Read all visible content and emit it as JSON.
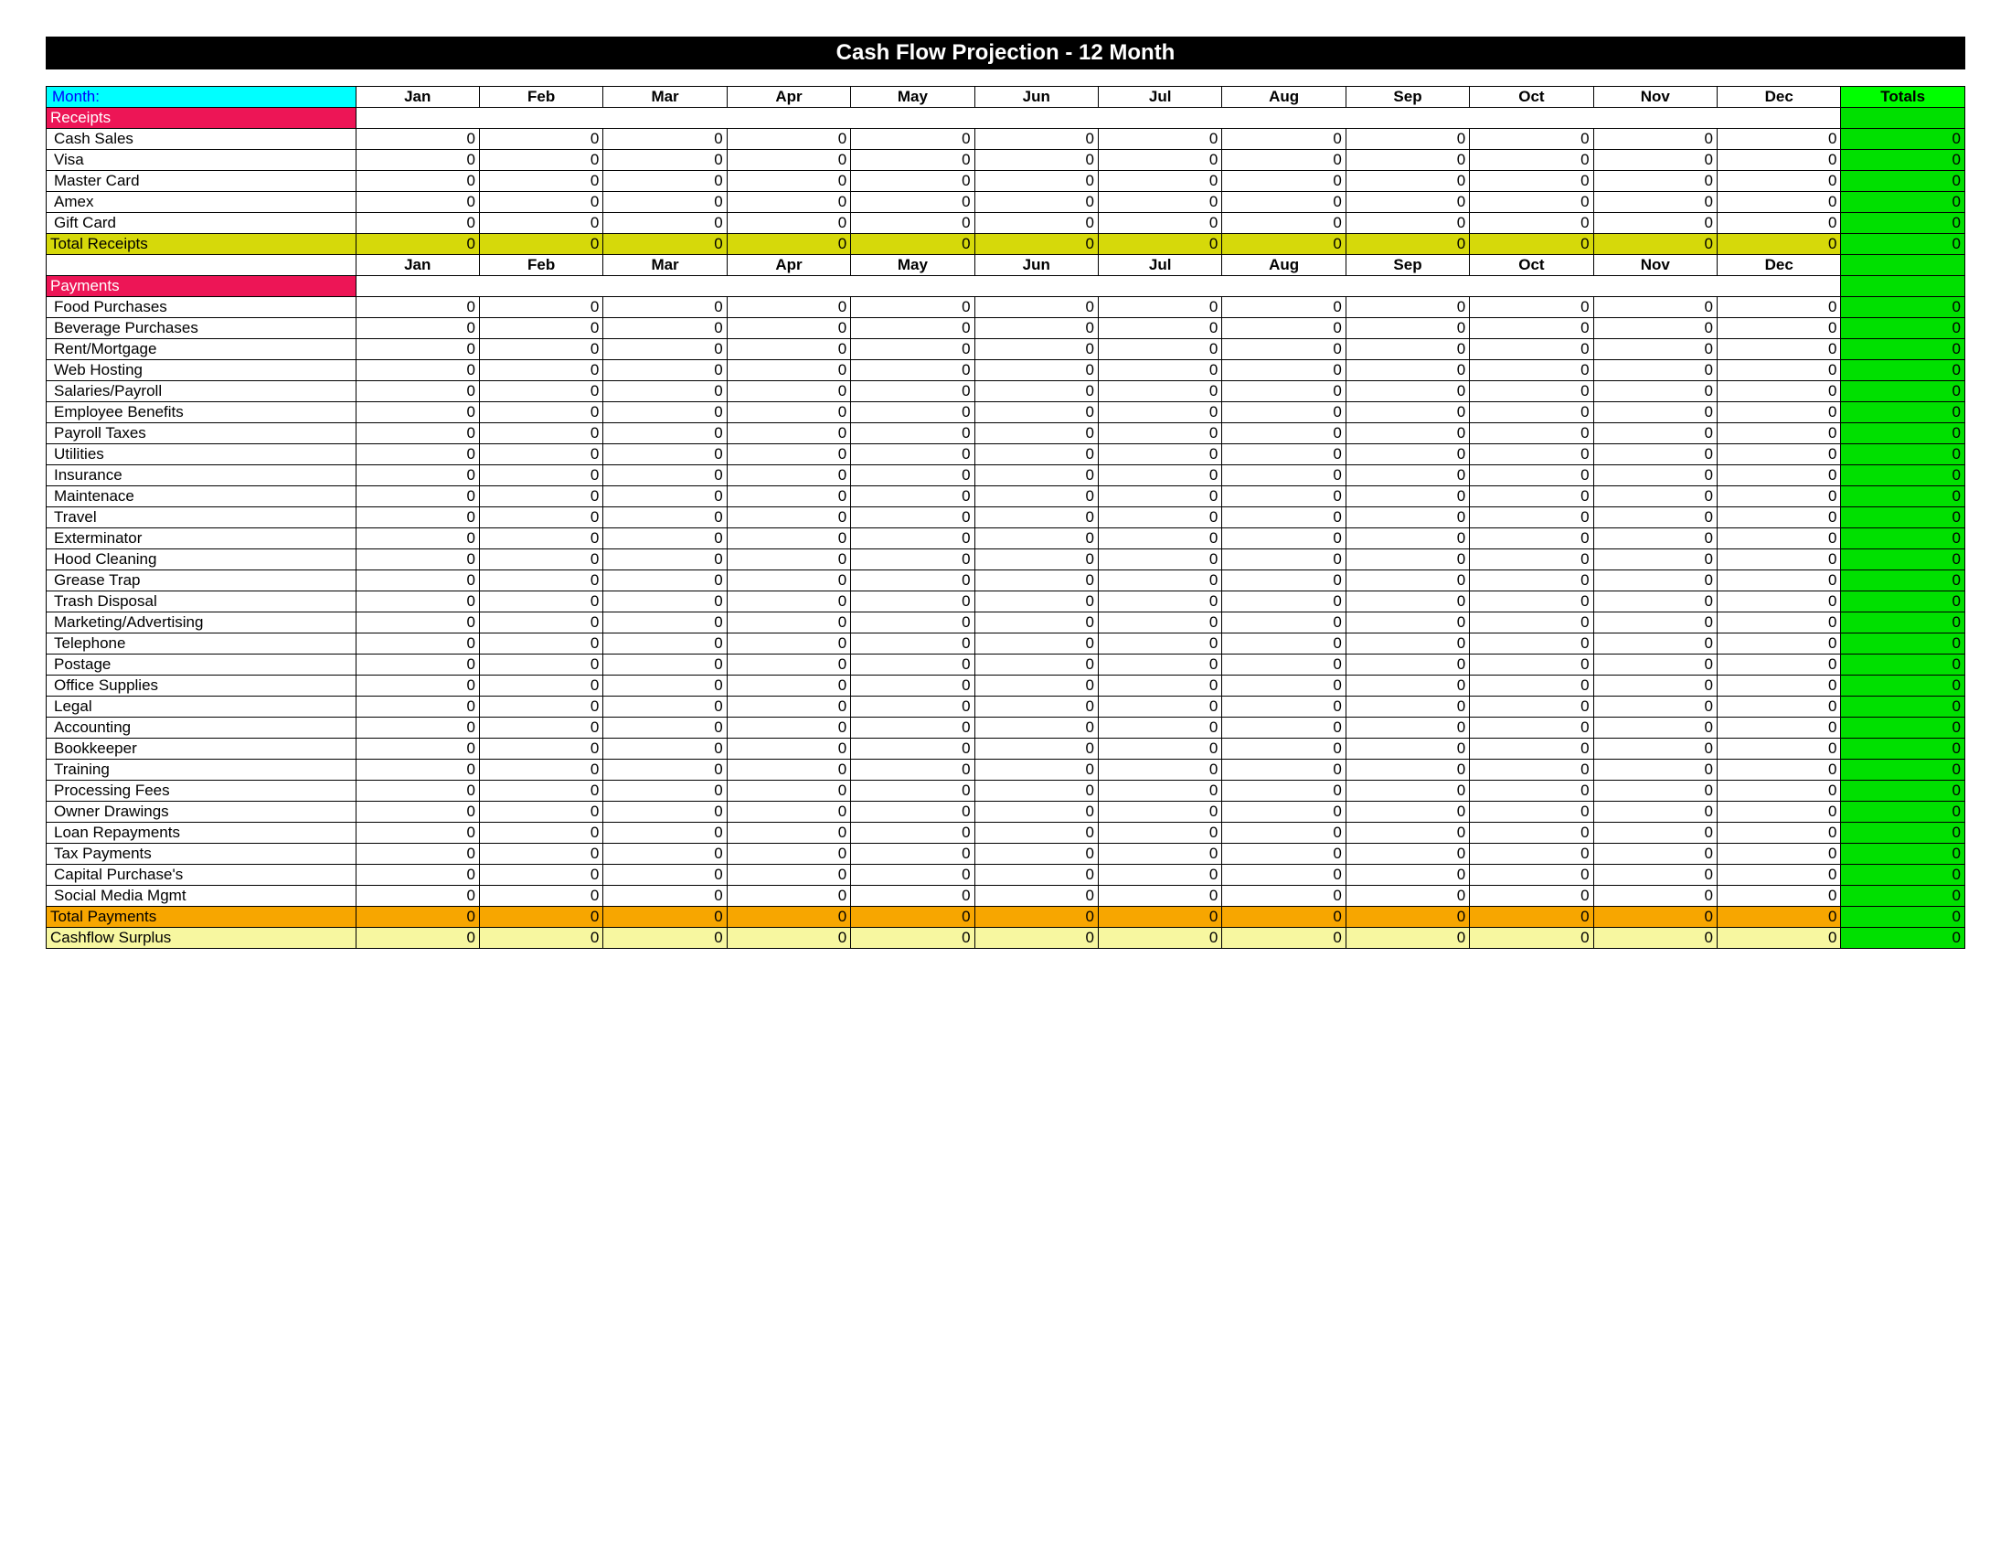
{
  "title": "Cash Flow Projection    -     12 Month",
  "colors": {
    "title_bg": "#000000",
    "title_fg": "#ffffff",
    "month_label_bg": "#00ffff",
    "month_label_fg": "#0000ff",
    "totals_header_bg": "#00ff00",
    "receipts_header_bg": "#ed1556",
    "payments_header_bg": "#ed1556",
    "total_receipts_bg": "#d6d90a",
    "total_payments_bg": "#f7a600",
    "surplus_bg": "#f7f7a0",
    "totals_col_bg": "#00e000"
  },
  "header": {
    "month_label": "Month:",
    "months": [
      "Jan",
      "Feb",
      "Mar",
      "Apr",
      "May",
      "Jun",
      "Jul",
      "Aug",
      "Sep",
      "Oct",
      "Nov",
      "Dec"
    ],
    "totals_label": "Totals"
  },
  "sections": {
    "receipts": {
      "label": "Receipts",
      "rows": [
        {
          "label": "Cash Sales",
          "vals": [
            0,
            0,
            0,
            0,
            0,
            0,
            0,
            0,
            0,
            0,
            0,
            0
          ],
          "total": 0
        },
        {
          "label": "Visa",
          "vals": [
            0,
            0,
            0,
            0,
            0,
            0,
            0,
            0,
            0,
            0,
            0,
            0
          ],
          "total": 0
        },
        {
          "label": "Master Card",
          "vals": [
            0,
            0,
            0,
            0,
            0,
            0,
            0,
            0,
            0,
            0,
            0,
            0
          ],
          "total": 0
        },
        {
          "label": "Amex",
          "vals": [
            0,
            0,
            0,
            0,
            0,
            0,
            0,
            0,
            0,
            0,
            0,
            0
          ],
          "total": 0
        },
        {
          "label": "Gift Card",
          "vals": [
            0,
            0,
            0,
            0,
            0,
            0,
            0,
            0,
            0,
            0,
            0,
            0
          ],
          "total": 0
        }
      ],
      "total_row": {
        "label": "Total Receipts",
        "vals": [
          0,
          0,
          0,
          0,
          0,
          0,
          0,
          0,
          0,
          0,
          0,
          0
        ],
        "total": 0
      }
    },
    "payments": {
      "label": "Payments",
      "rows": [
        {
          "label": "Food Purchases",
          "vals": [
            0,
            0,
            0,
            0,
            0,
            0,
            0,
            0,
            0,
            0,
            0,
            0
          ],
          "total": 0
        },
        {
          "label": "Beverage Purchases",
          "vals": [
            0,
            0,
            0,
            0,
            0,
            0,
            0,
            0,
            0,
            0,
            0,
            0
          ],
          "total": 0
        },
        {
          "label": "Rent/Mortgage",
          "vals": [
            0,
            0,
            0,
            0,
            0,
            0,
            0,
            0,
            0,
            0,
            0,
            0
          ],
          "total": 0
        },
        {
          "label": "Web Hosting",
          "vals": [
            0,
            0,
            0,
            0,
            0,
            0,
            0,
            0,
            0,
            0,
            0,
            0
          ],
          "total": 0
        },
        {
          "label": "Salaries/Payroll",
          "vals": [
            0,
            0,
            0,
            0,
            0,
            0,
            0,
            0,
            0,
            0,
            0,
            0
          ],
          "total": 0
        },
        {
          "label": "Employee Benefits",
          "vals": [
            0,
            0,
            0,
            0,
            0,
            0,
            0,
            0,
            0,
            0,
            0,
            0
          ],
          "total": 0
        },
        {
          "label": "Payroll Taxes",
          "vals": [
            0,
            0,
            0,
            0,
            0,
            0,
            0,
            0,
            0,
            0,
            0,
            0
          ],
          "total": 0
        },
        {
          "label": "Utilities",
          "vals": [
            0,
            0,
            0,
            0,
            0,
            0,
            0,
            0,
            0,
            0,
            0,
            0
          ],
          "total": 0
        },
        {
          "label": "Insurance",
          "vals": [
            0,
            0,
            0,
            0,
            0,
            0,
            0,
            0,
            0,
            0,
            0,
            0
          ],
          "total": 0
        },
        {
          "label": "Maintenace",
          "vals": [
            0,
            0,
            0,
            0,
            0,
            0,
            0,
            0,
            0,
            0,
            0,
            0
          ],
          "total": 0
        },
        {
          "label": "Travel",
          "vals": [
            0,
            0,
            0,
            0,
            0,
            0,
            0,
            0,
            0,
            0,
            0,
            0
          ],
          "total": 0
        },
        {
          "label": "Exterminator",
          "vals": [
            0,
            0,
            0,
            0,
            0,
            0,
            0,
            0,
            0,
            0,
            0,
            0
          ],
          "total": 0
        },
        {
          "label": "Hood Cleaning",
          "vals": [
            0,
            0,
            0,
            0,
            0,
            0,
            0,
            0,
            0,
            0,
            0,
            0
          ],
          "total": 0
        },
        {
          "label": "Grease Trap",
          "vals": [
            0,
            0,
            0,
            0,
            0,
            0,
            0,
            0,
            0,
            0,
            0,
            0
          ],
          "total": 0
        },
        {
          "label": "Trash Disposal",
          "vals": [
            0,
            0,
            0,
            0,
            0,
            0,
            0,
            0,
            0,
            0,
            0,
            0
          ],
          "total": 0
        },
        {
          "label": "Marketing/Advertising",
          "vals": [
            0,
            0,
            0,
            0,
            0,
            0,
            0,
            0,
            0,
            0,
            0,
            0
          ],
          "total": 0
        },
        {
          "label": "Telephone",
          "vals": [
            0,
            0,
            0,
            0,
            0,
            0,
            0,
            0,
            0,
            0,
            0,
            0
          ],
          "total": 0
        },
        {
          "label": "Postage",
          "vals": [
            0,
            0,
            0,
            0,
            0,
            0,
            0,
            0,
            0,
            0,
            0,
            0
          ],
          "total": 0
        },
        {
          "label": "Office Supplies",
          "vals": [
            0,
            0,
            0,
            0,
            0,
            0,
            0,
            0,
            0,
            0,
            0,
            0
          ],
          "total": 0
        },
        {
          "label": "Legal",
          "vals": [
            0,
            0,
            0,
            0,
            0,
            0,
            0,
            0,
            0,
            0,
            0,
            0
          ],
          "total": 0
        },
        {
          "label": "Accounting",
          "vals": [
            0,
            0,
            0,
            0,
            0,
            0,
            0,
            0,
            0,
            0,
            0,
            0
          ],
          "total": 0
        },
        {
          "label": "Bookkeeper",
          "vals": [
            0,
            0,
            0,
            0,
            0,
            0,
            0,
            0,
            0,
            0,
            0,
            0
          ],
          "total": 0
        },
        {
          "label": "Training",
          "vals": [
            0,
            0,
            0,
            0,
            0,
            0,
            0,
            0,
            0,
            0,
            0,
            0
          ],
          "total": 0
        },
        {
          "label": "Processing Fees",
          "vals": [
            0,
            0,
            0,
            0,
            0,
            0,
            0,
            0,
            0,
            0,
            0,
            0
          ],
          "total": 0
        },
        {
          "label": "Owner Drawings",
          "vals": [
            0,
            0,
            0,
            0,
            0,
            0,
            0,
            0,
            0,
            0,
            0,
            0
          ],
          "total": 0
        },
        {
          "label": "Loan Repayments",
          "vals": [
            0,
            0,
            0,
            0,
            0,
            0,
            0,
            0,
            0,
            0,
            0,
            0
          ],
          "total": 0
        },
        {
          "label": "Tax Payments",
          "vals": [
            0,
            0,
            0,
            0,
            0,
            0,
            0,
            0,
            0,
            0,
            0,
            0
          ],
          "total": 0
        },
        {
          "label": "Capital Purchase's",
          "vals": [
            0,
            0,
            0,
            0,
            0,
            0,
            0,
            0,
            0,
            0,
            0,
            0
          ],
          "total": 0
        },
        {
          "label": "Social Media Mgmt",
          "vals": [
            0,
            0,
            0,
            0,
            0,
            0,
            0,
            0,
            0,
            0,
            0,
            0
          ],
          "total": 0
        }
      ],
      "total_row": {
        "label": "Total Payments",
        "vals": [
          0,
          0,
          0,
          0,
          0,
          0,
          0,
          0,
          0,
          0,
          0,
          0
        ],
        "total": 0
      }
    },
    "surplus": {
      "label": "Cashflow Surplus",
      "vals": [
        0,
        0,
        0,
        0,
        0,
        0,
        0,
        0,
        0,
        0,
        0,
        0
      ],
      "total": 0
    }
  }
}
